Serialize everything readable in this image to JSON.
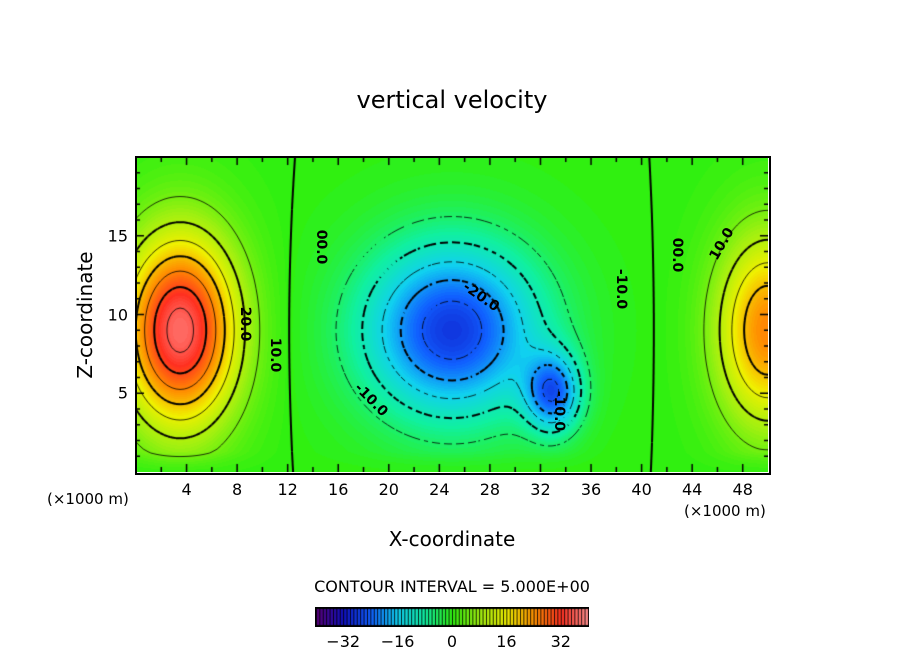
{
  "chart_data": {
    "type": "heatmap",
    "subtype": "filled-contour",
    "title": "vertical velocity",
    "xlabel": "X-coordinate",
    "ylabel": "Z-coordinate",
    "x_unit_label": "(×1000 m)",
    "y_unit_label": "(×1000 m)",
    "xlim": [
      0,
      50
    ],
    "ylim": [
      0,
      20
    ],
    "x_ticks": [
      "4",
      "8",
      "12",
      "16",
      "20",
      "24",
      "28",
      "32",
      "36",
      "40",
      "44",
      "48"
    ],
    "y_ticks": [
      "5",
      "10",
      "15"
    ],
    "contour_interval_label": "CONTOUR INTERVAL = 5.000E+00",
    "contour_interval": 5,
    "colorbar": {
      "range": [
        -40,
        40
      ],
      "ticks": [
        "−32",
        "−16",
        "0",
        "16",
        "32"
      ],
      "tick_values": [
        -32,
        -16,
        0,
        16,
        32
      ],
      "colors": [
        "#5a0078",
        "#1010c0",
        "#1060ff",
        "#10d0f0",
        "#10f0a0",
        "#30f010",
        "#a0f010",
        "#f0f000",
        "#ff9000",
        "#ff3020",
        "#ff9090"
      ]
    },
    "features": [
      {
        "sign": "positive",
        "x": 3.5,
        "z": 9,
        "peak": 37
      },
      {
        "sign": "negative",
        "x": 25,
        "z": 9,
        "peak": -28
      },
      {
        "sign": "negative",
        "x": 33,
        "z": 5,
        "peak": -22
      },
      {
        "sign": "positive",
        "x": 50,
        "z": 9,
        "peak": 25
      }
    ],
    "contour_labels": [
      {
        "text": "00.0",
        "x": 14.6,
        "z": 14.3
      },
      {
        "text": "20.0",
        "x": 8.6,
        "z": 9.4
      },
      {
        "text": "10.0",
        "x": 11.0,
        "z": 7.4
      },
      {
        "text": "-20.0",
        "x": 27.3,
        "z": 11.1
      },
      {
        "text": "-10.0",
        "x": 38.4,
        "z": 11.6
      },
      {
        "text": "-10.0",
        "x": 18.6,
        "z": 4.6
      },
      {
        "text": "-10.0",
        "x": 33.5,
        "z": 3.9
      },
      {
        "text": "00.0",
        "x": 42.8,
        "z": 13.8
      },
      {
        "text": "10.0",
        "x": 46.4,
        "z": 14.5
      }
    ]
  }
}
